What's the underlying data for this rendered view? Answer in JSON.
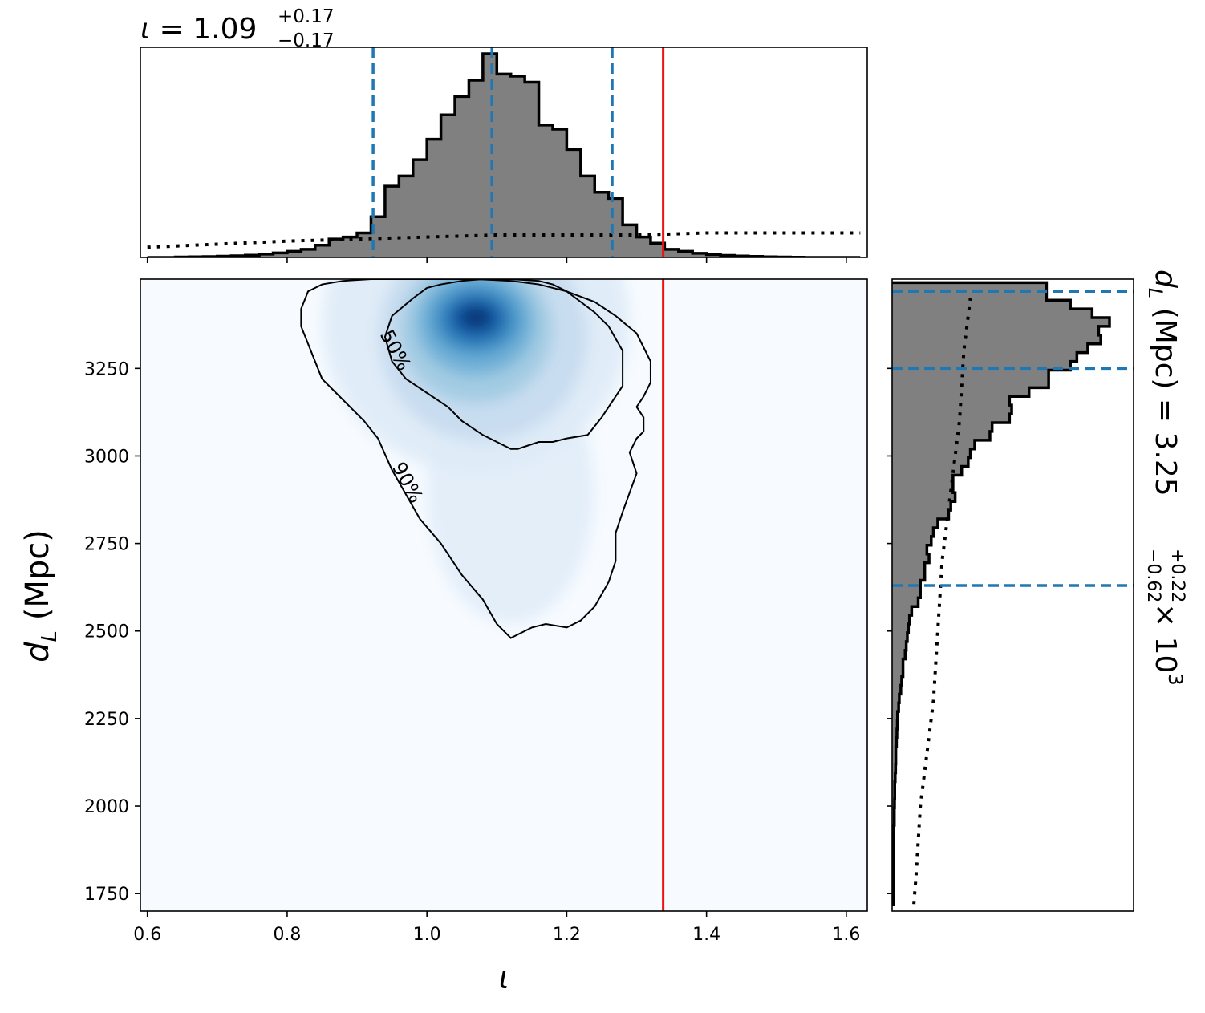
{
  "chart_data": [
    {
      "panel": "marginal-top",
      "type": "histogram",
      "title": {
        "param": "ι",
        "eq": " = 1.09",
        "sup": "+0.17",
        "sub": "−0.17"
      },
      "colors": {
        "hist_fill": "#808080",
        "hist_edge": "#000000",
        "quantile": "#1f77b4",
        "injection": "#ee1111",
        "prior": "#000000"
      },
      "xlim": [
        0.59,
        1.63
      ],
      "bin_edges": [
        0.6,
        0.62,
        0.64,
        0.66,
        0.68,
        0.7,
        0.72,
        0.74,
        0.76,
        0.78,
        0.8,
        0.82,
        0.84,
        0.86,
        0.88,
        0.9,
        0.92,
        0.94,
        0.96,
        0.98,
        1.0,
        1.02,
        1.04,
        1.06,
        1.08,
        1.1,
        1.12,
        1.14,
        1.16,
        1.18,
        1.2,
        1.22,
        1.24,
        1.26,
        1.28,
        1.3,
        1.32,
        1.34,
        1.36,
        1.38,
        1.4,
        1.42,
        1.44,
        1.46,
        1.48,
        1.5,
        1.52,
        1.54,
        1.56,
        1.58,
        1.6,
        1.62
      ],
      "counts": [
        0.0,
        0.0,
        0.002,
        0.003,
        0.004,
        0.006,
        0.008,
        0.011,
        0.016,
        0.022,
        0.03,
        0.04,
        0.06,
        0.09,
        0.1,
        0.12,
        0.2,
        0.35,
        0.4,
        0.48,
        0.58,
        0.7,
        0.79,
        0.87,
        1.0,
        0.9,
        0.89,
        0.86,
        0.65,
        0.63,
        0.53,
        0.4,
        0.32,
        0.29,
        0.16,
        0.1,
        0.07,
        0.04,
        0.03,
        0.02,
        0.014,
        0.01,
        0.007,
        0.005,
        0.003,
        0.002,
        0.001,
        0.0,
        0.0,
        0.0,
        0.0
      ],
      "prior": {
        "x": [
          0.6,
          0.8,
          0.9,
          1.0,
          1.1,
          1.2,
          1.3,
          1.4,
          1.5,
          1.62
        ],
        "y": [
          0.05,
          0.08,
          0.09,
          0.1,
          0.11,
          0.11,
          0.11,
          0.12,
          0.12,
          0.12
        ]
      },
      "quantiles": [
        0.923,
        1.093,
        1.265
      ],
      "injection": 1.338
    },
    {
      "panel": "joint",
      "type": "heatmap",
      "xlabel": "ι",
      "ylabel": {
        "main": "d",
        "sub": "L",
        "tail": " (Mpc)"
      },
      "xlim": [
        0.59,
        1.63
      ],
      "ylim": [
        1700,
        3505
      ],
      "xticks": [
        0.6,
        0.8,
        1.0,
        1.2,
        1.4,
        1.6
      ],
      "xtick_labels": [
        "0.6",
        "0.8",
        "1.0",
        "1.2",
        "1.4",
        "1.6"
      ],
      "yticks": [
        1750,
        2000,
        2250,
        2500,
        2750,
        3000,
        3250
      ],
      "ytick_labels": [
        "1750",
        "2000",
        "2250",
        "2500",
        "2750",
        "3000",
        "3250"
      ],
      "colormap": [
        "#f7fbff",
        "#deebf7",
        "#c6dbef",
        "#9ecae1",
        "#6baed6",
        "#4292c6",
        "#2171b5",
        "#08519c",
        "#08306b"
      ],
      "density_peak": [
        1.07,
        3380
      ],
      "injection": 1.338,
      "contours": [
        {
          "label": "50%",
          "x": [
            1.0,
            1.02,
            1.05,
            1.08,
            1.12,
            1.16,
            1.18,
            1.2,
            1.22,
            1.24,
            1.26,
            1.28,
            1.28,
            1.25,
            1.23,
            1.2,
            1.18,
            1.16,
            1.13,
            1.12,
            1.1,
            1.08,
            1.05,
            1.03,
            1.0,
            0.97,
            0.95,
            0.94,
            0.95,
            0.98,
            1.0
          ],
          "y": [
            3480,
            3490,
            3500,
            3505,
            3505,
            3500,
            3490,
            3470,
            3440,
            3410,
            3370,
            3300,
            3200,
            3110,
            3060,
            3050,
            3040,
            3040,
            3020,
            3020,
            3040,
            3060,
            3100,
            3140,
            3180,
            3220,
            3270,
            3340,
            3400,
            3450,
            3480
          ]
        },
        {
          "label": "90%",
          "x": [
            0.83,
            0.85,
            0.88,
            0.92,
            0.97,
            1.02,
            1.07,
            1.12,
            1.16,
            1.2,
            1.24,
            1.27,
            1.3,
            1.31,
            1.32,
            1.32,
            1.31,
            1.3,
            1.31,
            1.31,
            1.3,
            1.29,
            1.3,
            1.28,
            1.27,
            1.27,
            1.26,
            1.24,
            1.22,
            1.2,
            1.17,
            1.15,
            1.13,
            1.12,
            1.1,
            1.08,
            1.05,
            1.02,
            0.99,
            0.97,
            0.95,
            0.93,
            0.91,
            0.89,
            0.87,
            0.85,
            0.84,
            0.83,
            0.82,
            0.82,
            0.83
          ],
          "y": [
            3470,
            3490,
            3500,
            3505,
            3505,
            3505,
            3505,
            3500,
            3490,
            3470,
            3440,
            3400,
            3350,
            3310,
            3270,
            3210,
            3170,
            3140,
            3110,
            3070,
            3050,
            3010,
            2950,
            2840,
            2780,
            2700,
            2640,
            2570,
            2530,
            2510,
            2520,
            2510,
            2490,
            2480,
            2520,
            2590,
            2660,
            2750,
            2820,
            2890,
            2960,
            3050,
            3100,
            3140,
            3180,
            3220,
            3270,
            3320,
            3370,
            3420,
            3470
          ]
        }
      ]
    },
    {
      "panel": "marginal-right",
      "type": "histogram",
      "orientation": "horizontal",
      "label": {
        "main": "d",
        "sub": "L",
        "mid": " (Mpc) = 3.25",
        "sup": "+0.22",
        "sub2": "−0.62",
        "tail": " × 10",
        "exp": "3"
      },
      "ylim": [
        1700,
        3505
      ],
      "bin_edges": [
        1720,
        1745,
        1770,
        1795,
        1820,
        1845,
        1870,
        1895,
        1920,
        1945,
        1970,
        1995,
        2020,
        2045,
        2070,
        2095,
        2120,
        2145,
        2170,
        2195,
        2220,
        2245,
        2270,
        2295,
        2320,
        2345,
        2370,
        2395,
        2420,
        2445,
        2470,
        2495,
        2520,
        2545,
        2570,
        2595,
        2620,
        2645,
        2670,
        2695,
        2720,
        2745,
        2770,
        2795,
        2820,
        2845,
        2870,
        2895,
        2920,
        2945,
        2970,
        2995,
        3020,
        3045,
        3070,
        3095,
        3120,
        3145,
        3170,
        3195,
        3220,
        3245,
        3270,
        3295,
        3320,
        3345,
        3370,
        3395,
        3420,
        3445,
        3470,
        3495
      ],
      "counts": [
        0.005,
        0.005,
        0.005,
        0.005,
        0.006,
        0.007,
        0.007,
        0.008,
        0.008,
        0.01,
        0.01,
        0.011,
        0.012,
        0.012,
        0.014,
        0.016,
        0.017,
        0.017,
        0.02,
        0.022,
        0.024,
        0.025,
        0.03,
        0.033,
        0.04,
        0.044,
        0.05,
        0.05,
        0.06,
        0.065,
        0.07,
        0.075,
        0.08,
        0.09,
        0.12,
        0.13,
        0.13,
        0.15,
        0.15,
        0.17,
        0.16,
        0.18,
        0.19,
        0.21,
        0.26,
        0.27,
        0.29,
        0.28,
        0.28,
        0.32,
        0.35,
        0.36,
        0.38,
        0.45,
        0.46,
        0.54,
        0.55,
        0.54,
        0.63,
        0.72,
        0.72,
        0.82,
        0.85,
        0.9,
        0.96,
        0.95,
        1.0,
        0.92,
        0.82,
        0.71,
        0.71
      ],
      "prior": {
        "y": [
          1720,
          1800,
          1900,
          2000,
          2100,
          2200,
          2300,
          2400,
          2500,
          2600,
          2700,
          2800,
          2900,
          3000,
          3100,
          3200,
          3300,
          3400,
          3450
        ],
        "x": [
          0.1,
          0.11,
          0.12,
          0.13,
          0.15,
          0.17,
          0.19,
          0.2,
          0.21,
          0.22,
          0.23,
          0.25,
          0.27,
          0.29,
          0.31,
          0.32,
          0.33,
          0.35,
          0.36
        ]
      },
      "quantiles": [
        2630,
        3250,
        3470
      ]
    }
  ]
}
